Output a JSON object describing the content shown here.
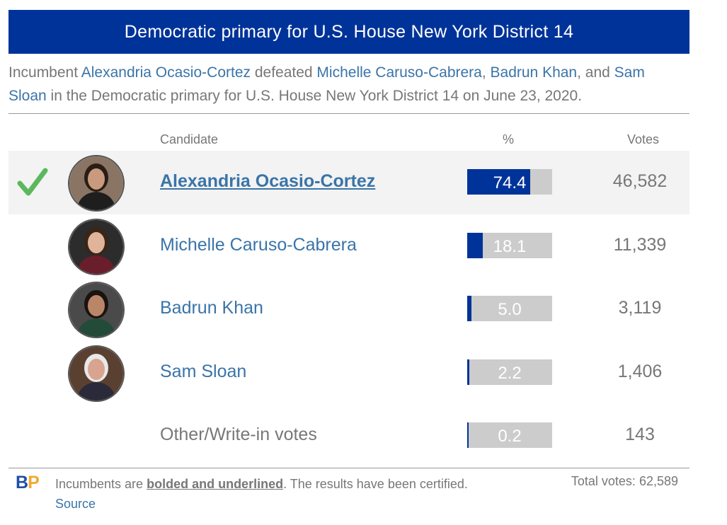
{
  "header": {
    "title": "Democratic primary for U.S. House New York District 14"
  },
  "intro": {
    "t1": "Incumbent ",
    "n1": "Alexandria Ocasio-Cortez",
    "t2": " defeated ",
    "n2": "Michelle Caruso-Cabrera",
    "t3": ", ",
    "n3": "Badrun Khan",
    "t4": ", and ",
    "n4": "Sam Sloan",
    "t5": " in the Democratic primary for U.S. House New York District 14 on June 23, 2020."
  },
  "columns": {
    "candidate": "Candidate",
    "percent": "%",
    "votes": "Votes"
  },
  "rows": [
    {
      "name": "Alexandria Ocasio-Cortez",
      "percent": "74.4",
      "votes": "46,582",
      "pct_value": 74.4,
      "winner": true,
      "avatar_icon": "person-avatar-icon"
    },
    {
      "name": "Michelle Caruso-Cabrera",
      "percent": "18.1",
      "votes": "11,339",
      "pct_value": 18.1,
      "winner": false,
      "avatar_icon": "person-avatar-icon"
    },
    {
      "name": "Badrun Khan",
      "percent": "5.0",
      "votes": "3,119",
      "pct_value": 5.0,
      "winner": false,
      "avatar_icon": "person-avatar-icon"
    },
    {
      "name": "Sam Sloan",
      "percent": "2.2",
      "votes": "1,406",
      "pct_value": 2.2,
      "winner": false,
      "avatar_icon": "person-avatar-icon"
    },
    {
      "name": "Other/Write-in votes",
      "percent": "0.2",
      "votes": "143",
      "pct_value": 0.2,
      "winner": false
    }
  ],
  "footer": {
    "logo_b": "B",
    "logo_p": "P",
    "note_t1": "Incumbents are ",
    "note_bold": "bolded and underlined",
    "note_t2": ". The results have been certified. ",
    "source_link": "Source",
    "total_votes": "Total votes: 62,589"
  },
  "colors": {
    "banner": "#003399",
    "bar_fill": "#003399",
    "bar_bg": "#cccccc",
    "link": "#3a74a8",
    "check": "#5cb85c",
    "logo_b": "#1f4fa8",
    "logo_p": "#f0a830"
  }
}
